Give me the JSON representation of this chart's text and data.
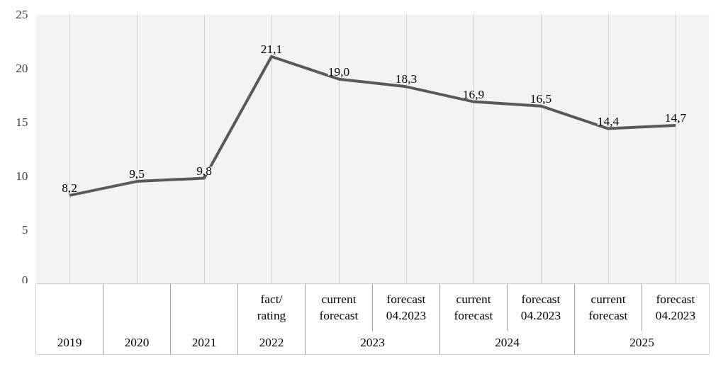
{
  "chart_data": {
    "type": "line",
    "categories": [
      null,
      null,
      null,
      "fact/\nrating",
      "current\nforecast",
      "forecast\n04.2023",
      "current\nforecast",
      "forecast\n04.2023",
      "current\nforecast",
      "forecast\n04.2023"
    ],
    "series": [
      {
        "color": "#595959",
        "values": [
          8.2,
          9.5,
          9.8,
          21.1,
          19.0,
          18.3,
          16.9,
          16.5,
          14.4,
          14.7
        ],
        "value_labels": [
          "8,2",
          "9,5",
          "9,8",
          "21,1",
          "19,0",
          "18,3",
          "16,9",
          "16,5",
          "14,4",
          "14,7"
        ]
      }
    ],
    "annotations": [
      "2019",
      "2020",
      "2021",
      "2022",
      "2023",
      "2024",
      "2025"
    ],
    "ylim": [
      0,
      25
    ],
    "yticks": [
      0,
      5,
      10,
      15,
      20,
      25
    ],
    "grid": "x",
    "marker": "none",
    "line_style": "solid"
  }
}
